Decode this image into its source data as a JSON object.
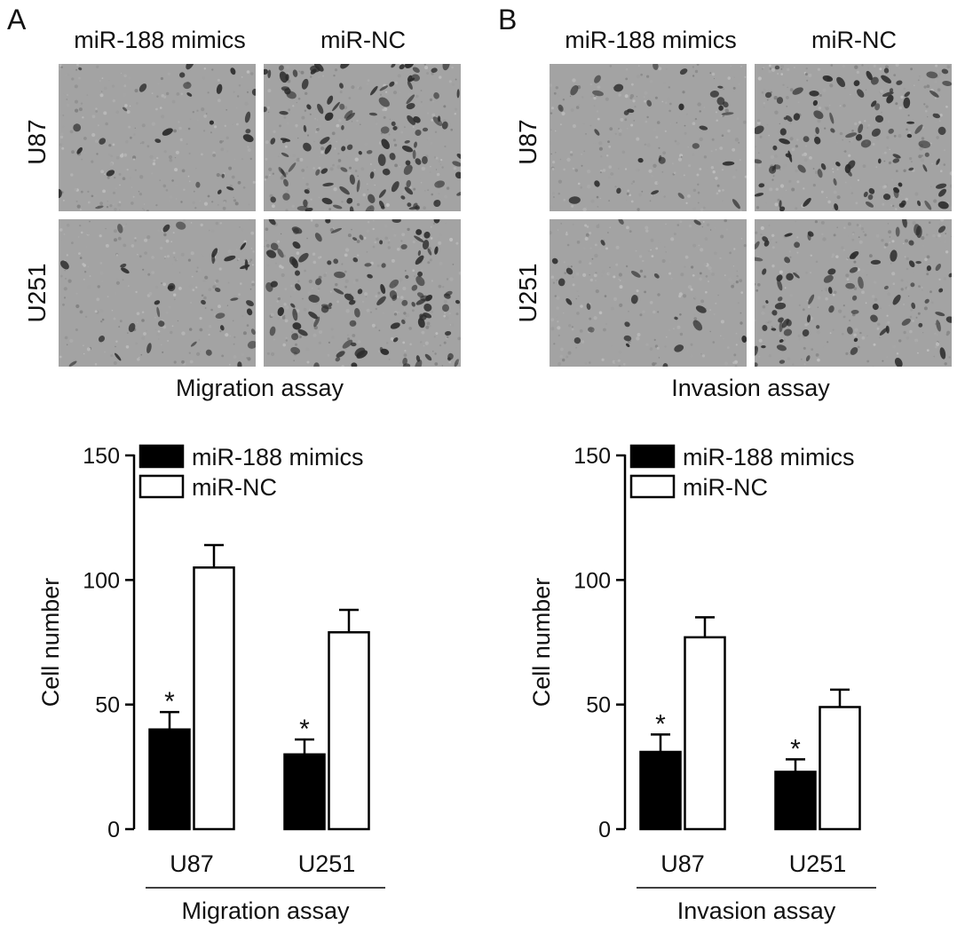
{
  "colors": {
    "mimics": "#000000",
    "nc": "#ffffff",
    "stroke": "#000000",
    "photo_bg": "#a3a3a3",
    "cell": "#2c2c2c"
  },
  "panels": [
    {
      "letter": "A",
      "col_labels": [
        "miR-188 mimics",
        "miR-NC"
      ],
      "row_labels": [
        "U87",
        "U251"
      ],
      "images_label": "Migration assay"
    },
    {
      "letter": "B",
      "col_labels": [
        "miR-188 mimics",
        "miR-NC"
      ],
      "row_labels": [
        "U87",
        "U251"
      ],
      "images_label": "Invasion assay"
    }
  ],
  "chart_data": [
    {
      "type": "bar",
      "categories": [
        "U87",
        "U251"
      ],
      "group_label": "Migration assay",
      "ylabel": "Cell number",
      "ylim": [
        0,
        150
      ],
      "yticks": [
        0,
        50,
        100,
        150
      ],
      "legend_position": "top-left",
      "grid": false,
      "series": [
        {
          "name": "miR-188 mimics",
          "color": "#000000",
          "values": [
            40,
            30
          ],
          "errors": [
            7,
            6
          ],
          "annotations": [
            "*",
            "*"
          ]
        },
        {
          "name": "miR-NC",
          "color": "#ffffff",
          "values": [
            105,
            79
          ],
          "errors": [
            9,
            9
          ],
          "annotations": [
            "",
            ""
          ]
        }
      ]
    },
    {
      "type": "bar",
      "categories": [
        "U87",
        "U251"
      ],
      "group_label": "Invasion assay",
      "ylabel": "Cell number",
      "ylim": [
        0,
        150
      ],
      "yticks": [
        0,
        50,
        100,
        150
      ],
      "legend_position": "top-left",
      "grid": false,
      "series": [
        {
          "name": "miR-188 mimics",
          "color": "#000000",
          "values": [
            31,
            23
          ],
          "errors": [
            7,
            5
          ],
          "annotations": [
            "*",
            "*"
          ]
        },
        {
          "name": "miR-NC",
          "color": "#ffffff",
          "values": [
            77,
            49
          ],
          "errors": [
            8,
            7
          ],
          "annotations": [
            "",
            ""
          ]
        }
      ]
    }
  ]
}
